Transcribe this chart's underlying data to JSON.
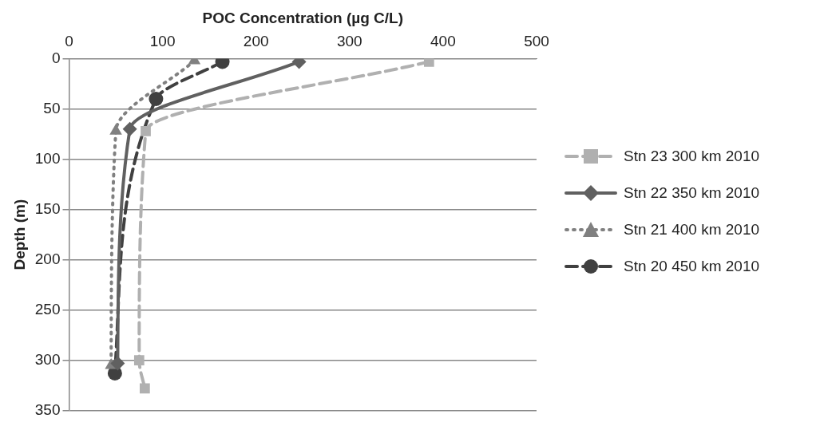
{
  "chart_data": {
    "type": "line",
    "xlabel": "POC Concentration (µg C/L)",
    "ylabel": "Depth (m)",
    "xlim": [
      0,
      500
    ],
    "xticks": [
      0,
      100,
      200,
      300,
      400,
      500
    ],
    "ylim": [
      350,
      0
    ],
    "yticks": [
      0,
      50,
      100,
      150,
      200,
      250,
      300,
      350
    ],
    "grid": "y",
    "legend": "right",
    "series": [
      {
        "name": "Stn 23 300 km 2010",
        "color": "#b0b0b0",
        "marker": "square",
        "line_style": "dashed",
        "x": [
          385,
          82,
          75,
          81
        ],
        "values": [
          3,
          72,
          300,
          328
        ]
      },
      {
        "name": "Stn 22 350 km 2010",
        "color": "#606060",
        "marker": "diamond",
        "line_style": "solid",
        "x": [
          246,
          65,
          52
        ],
        "values": [
          3,
          70,
          303
        ]
      },
      {
        "name": "Stn 21 400 km 2010",
        "color": "#808080",
        "marker": "triangle",
        "line_style": "dotted",
        "x": [
          134,
          50,
          45
        ],
        "values": [
          2,
          72,
          305
        ]
      },
      {
        "name": "Stn 20 450 km 2010",
        "color": "#404040",
        "marker": "circle",
        "line_style": "dashed",
        "x": [
          164,
          93,
          49
        ],
        "values": [
          3,
          40,
          313
        ]
      }
    ]
  }
}
